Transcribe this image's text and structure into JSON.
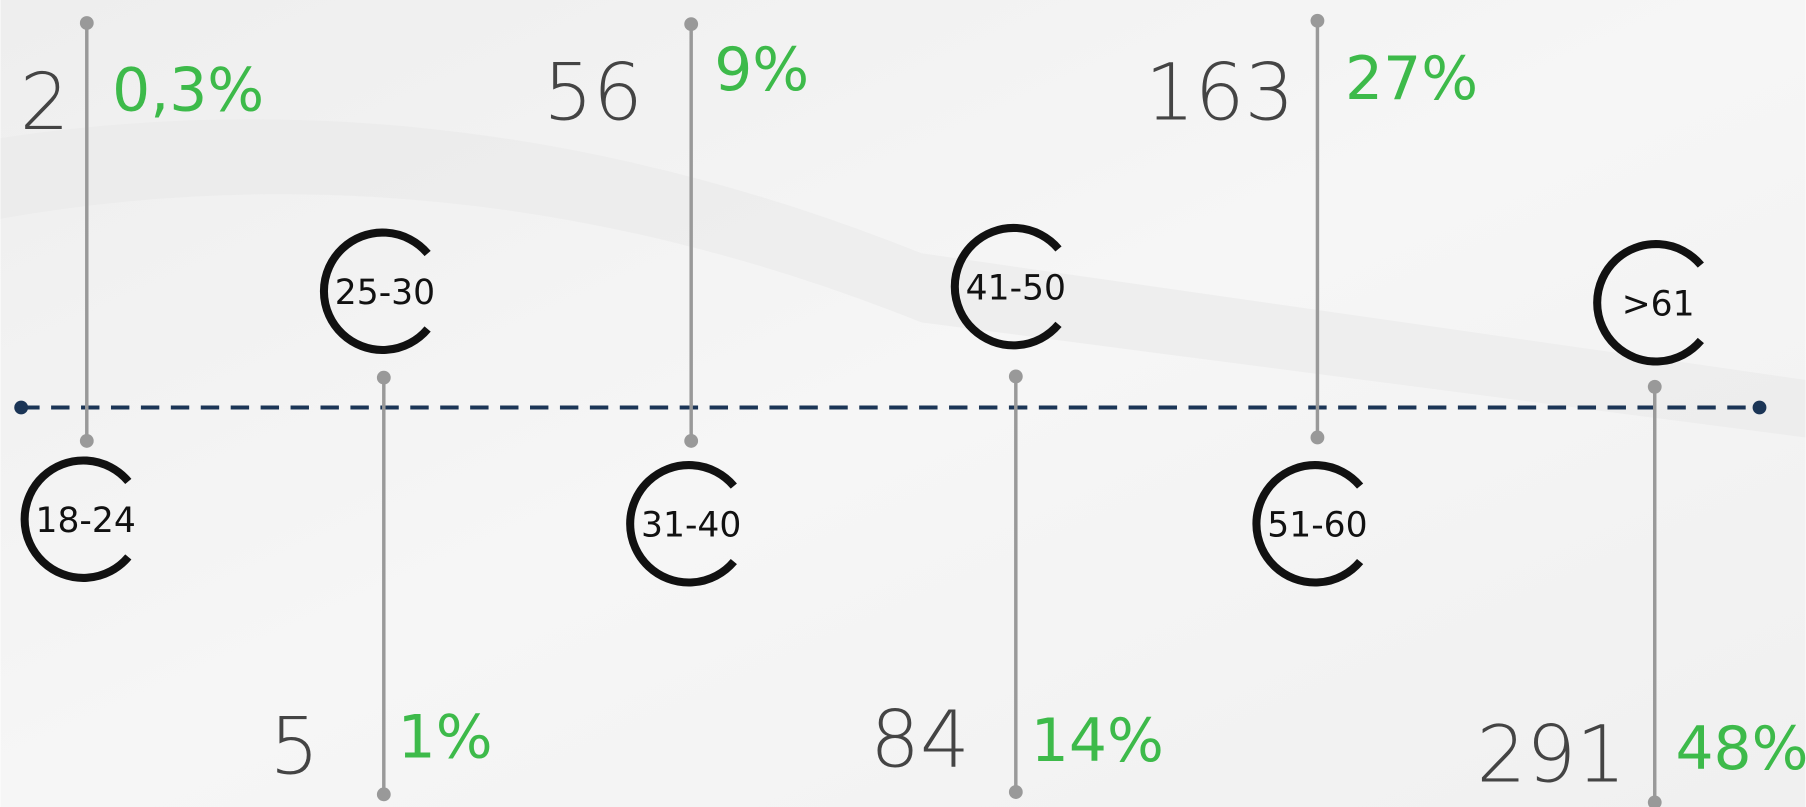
{
  "items": [
    {
      "label": "18-24",
      "count": 2,
      "percent": "0,3%"
    },
    {
      "label": "25-30",
      "count": 5,
      "percent": "1%"
    },
    {
      "label": "31-40",
      "count": 56,
      "percent": "9%"
    },
    {
      "label": "41-50",
      "count": 84,
      "percent": "14%"
    },
    {
      "label": "51-60",
      "count": 163,
      "percent": "27%"
    },
    {
      "label": ">61",
      "count": 291,
      "percent": "48%"
    }
  ]
}
